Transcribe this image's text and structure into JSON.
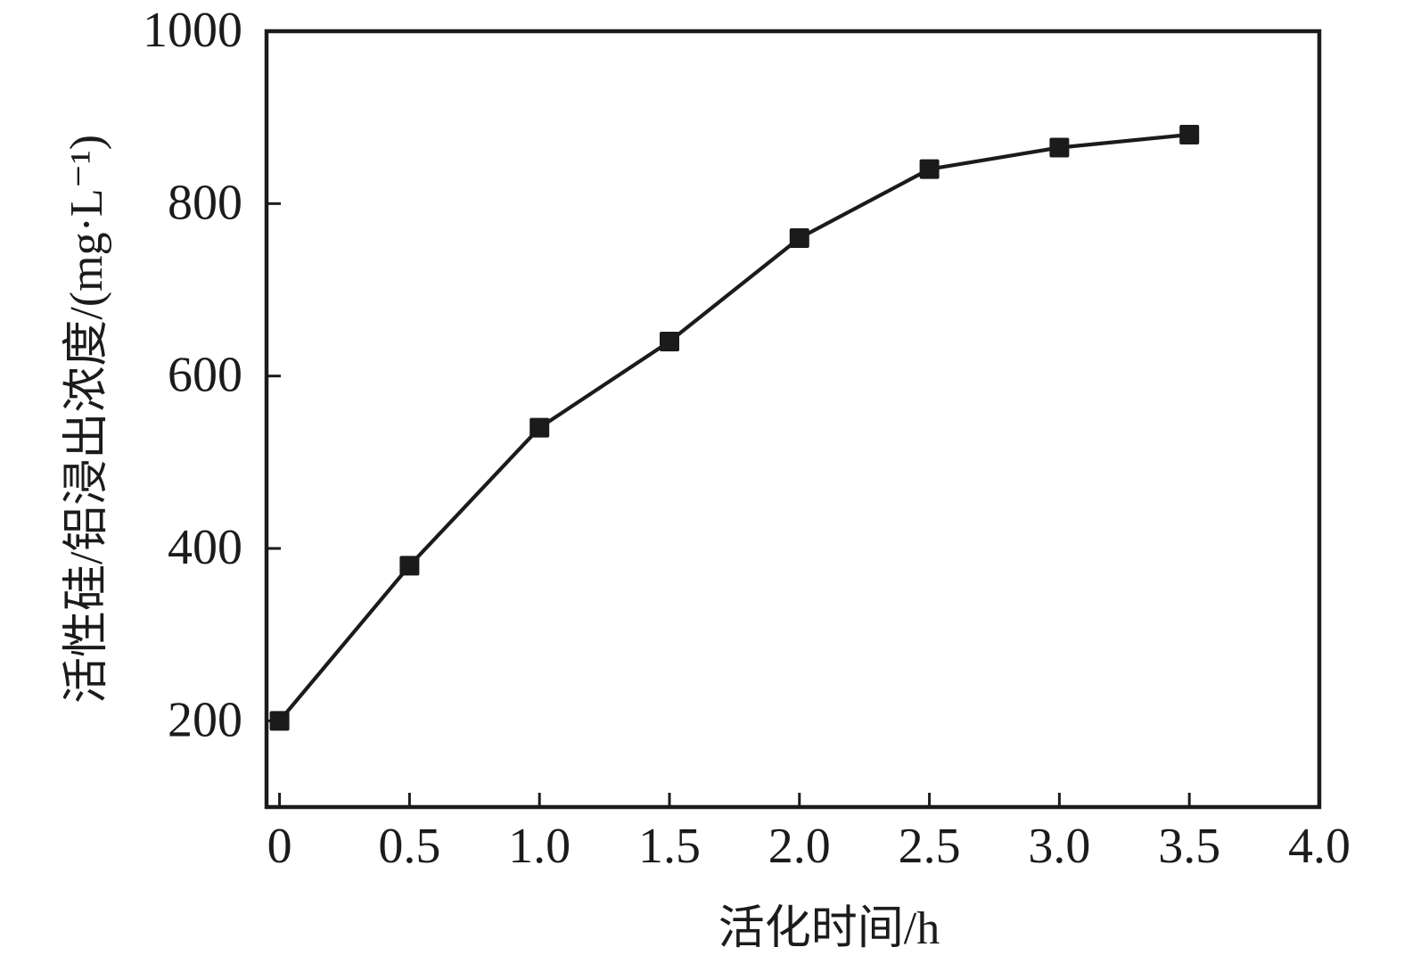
{
  "figure": {
    "background_color": "#ffffff",
    "ink_color": "#1b1b1b"
  },
  "chart_data": {
    "type": "line",
    "title": "",
    "xlabel": "活化时间/h",
    "ylabel": "活性硅/铝浸出浓度/(mg·L⁻¹)",
    "series": [
      {
        "x": [
          0,
          0.5,
          1.0,
          1.5,
          2.0,
          2.5,
          3.0,
          3.5
        ],
        "values": [
          200,
          380,
          540,
          640,
          760,
          840,
          865,
          880
        ],
        "marker": "filled-square",
        "color": "#1b1b1b"
      }
    ],
    "xlim": [
      -0.05,
      4.0
    ],
    "ylim": [
      100,
      1000
    ],
    "xticks": [
      0,
      0.5,
      1.0,
      1.5,
      2.0,
      2.5,
      3.0,
      3.5,
      4.0
    ],
    "xtick_labels": [
      "0",
      "0.5",
      "1.0",
      "1.5",
      "2.0",
      "2.5",
      "3.0",
      "3.5",
      "4.0"
    ],
    "yticks": [
      200,
      400,
      600,
      800,
      1000
    ],
    "ytick_labels": [
      "200",
      "400",
      "600",
      "800",
      "1000"
    ],
    "grid": false,
    "legend": "none",
    "tick_direction": "in"
  }
}
